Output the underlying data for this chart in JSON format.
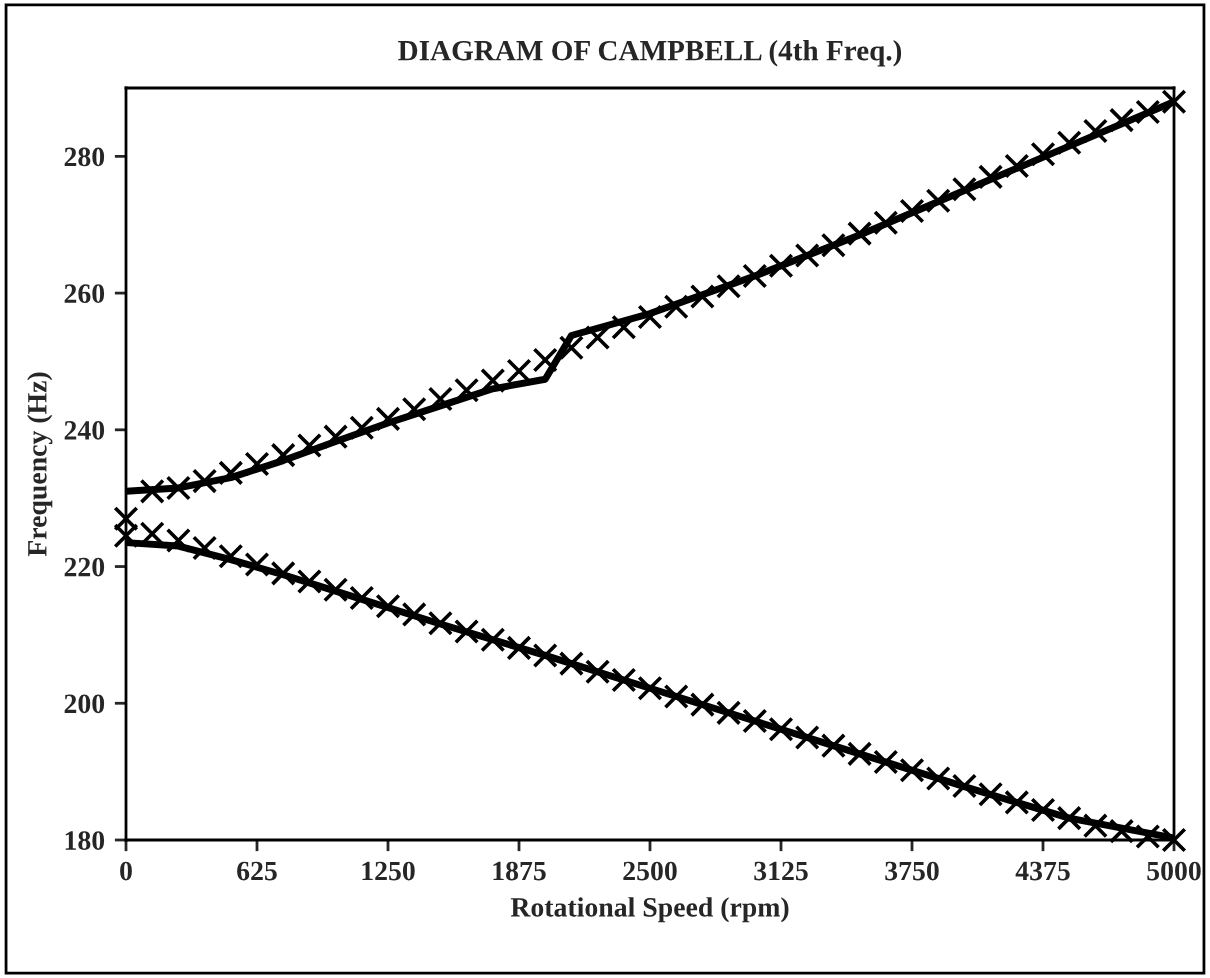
{
  "chart_data": {
    "type": "line",
    "title": "DIAGRAM OF CAMPBELL (4th Freq.)",
    "xlabel": "Rotational Speed (rpm)",
    "ylabel": "Frequency (Hz)",
    "xlim": [
      0,
      5000
    ],
    "xticks": [
      0,
      625,
      1250,
      1875,
      2500,
      3125,
      3750,
      4375,
      5000
    ],
    "ylim": [
      180,
      290
    ],
    "yticks": [
      180,
      200,
      220,
      240,
      260,
      280
    ],
    "series": [
      {
        "color": "#000000",
        "marker": "none",
        "line_style": "solid",
        "x": [
          0,
          250,
          500,
          750,
          1000,
          1250,
          1500,
          1750,
          2000,
          2125,
          2500,
          3000,
          3500,
          4000,
          4500,
          5000
        ],
        "values": [
          231,
          231.5,
          233,
          235.5,
          238.3,
          241,
          243.5,
          246,
          247.4,
          253.8,
          257,
          262.5,
          268.5,
          275,
          281.5,
          288
        ]
      },
      {
        "color": "#000000",
        "marker": "none",
        "line_style": "solid",
        "x": [
          0,
          250,
          500,
          750,
          1000,
          1500,
          2000,
          2500,
          3000,
          3500,
          4000,
          4500,
          5000
        ],
        "values": [
          223.5,
          223,
          221,
          218.8,
          216.4,
          211.6,
          207,
          202.2,
          197.4,
          192.6,
          187.8,
          183.2,
          180.3
        ]
      },
      {
        "type": "scatter",
        "color": "#000000",
        "marker": "cross",
        "x": [
          0,
          125,
          250,
          375,
          500,
          625,
          750,
          875,
          1000,
          1125,
          1250,
          1375,
          1500,
          1625,
          1750,
          1875,
          2000,
          2125,
          2250,
          2375,
          2500,
          2625,
          2750,
          2875,
          3000,
          3125,
          3250,
          3375,
          3500,
          3625,
          3750,
          3875,
          4000,
          4125,
          4250,
          4375,
          4500,
          4625,
          4750,
          4875,
          5000
        ],
        "values": [
          227,
          231,
          231.5,
          232.5,
          233.7,
          235,
          236.3,
          237.7,
          239,
          240.3,
          241.6,
          243,
          244.5,
          245.8,
          247.2,
          248.6,
          250.2,
          252,
          253.5,
          255,
          256.5,
          258,
          259.5,
          261,
          262.5,
          264,
          265.5,
          267,
          268.7,
          270.3,
          272,
          273.5,
          275.2,
          277,
          278.6,
          280.3,
          282,
          283.7,
          285.3,
          286.5,
          288
        ]
      },
      {
        "type": "scatter",
        "color": "#000000",
        "marker": "cross",
        "x": [
          0,
          125,
          250,
          375,
          500,
          625,
          750,
          875,
          1000,
          1125,
          1250,
          1375,
          1500,
          1625,
          1750,
          1875,
          2000,
          2125,
          2250,
          2375,
          2500,
          2625,
          2750,
          2875,
          3000,
          3125,
          3250,
          3375,
          3500,
          3625,
          3750,
          3875,
          4000,
          4125,
          4250,
          4375,
          4500,
          4625,
          4750,
          4875,
          5000
        ],
        "values": [
          224.5,
          224.8,
          223.8,
          222.7,
          221.5,
          220.3,
          219,
          217.8,
          216.6,
          215.4,
          214.2,
          213,
          211.7,
          210.5,
          209.3,
          208.1,
          207,
          205.8,
          204.6,
          203.4,
          202.2,
          201,
          199.8,
          198.6,
          197.4,
          196.2,
          195,
          193.8,
          192.6,
          191.4,
          190.2,
          189,
          187.9,
          186.7,
          185.5,
          184.4,
          183.2,
          182.1,
          181.3,
          180.5,
          180
        ]
      }
    ]
  }
}
